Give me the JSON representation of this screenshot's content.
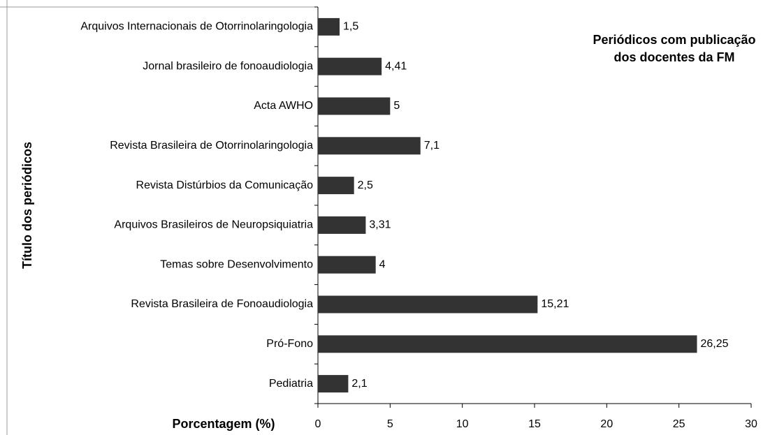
{
  "chart_data": {
    "type": "bar",
    "orientation": "horizontal",
    "title": [
      "Periódicos com publicação",
      "dos docentes da FM"
    ],
    "x_label": "Porcentagem (%)",
    "y_label": "Título dos periódicos",
    "categories": [
      "Arquivos Internacionais de Otorrinolaringologia",
      "Jornal brasileiro de fonoaudiologia",
      "Acta AWHO",
      "Revista Brasileira de Otorrinolaringologia",
      "Revista Distúrbios da Comunicação",
      "Arquivos Brasileiros de Neuropsiquiatria",
      "Temas sobre Desenvolvimento",
      "Revista Brasileira de Fonoaudiologia",
      "Pró-Fono",
      "Pediatria"
    ],
    "values": [
      1.5,
      4.41,
      5,
      7.1,
      2.5,
      3.31,
      4,
      15.21,
      26.25,
      2.1
    ],
    "value_labels": [
      "1,5",
      "4,41",
      "5",
      "7,1",
      "2,5",
      "3,31",
      "4",
      "15,21",
      "26,25",
      "2,1"
    ],
    "color": "#333333",
    "xlim": [
      0,
      30
    ],
    "xticks": [
      0,
      5,
      10,
      15,
      20,
      25,
      30
    ],
    "grid": false
  }
}
